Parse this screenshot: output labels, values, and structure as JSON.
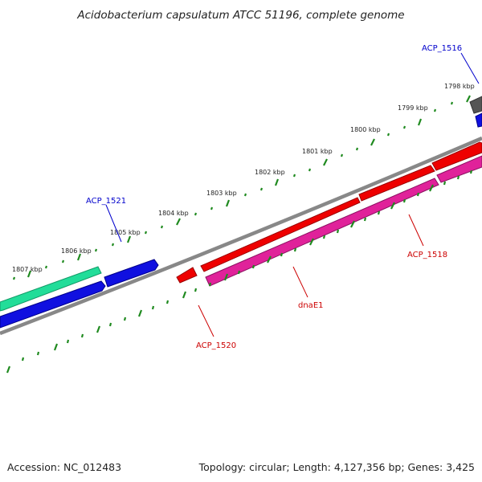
{
  "title": "Acidobacterium capsulatum ATCC 51196, complete genome",
  "footer": {
    "accession": "Accession: NC_012483",
    "summary": "Topology: circular; Length: 4,127,356 bp; Genes: 3,425"
  },
  "colors": {
    "backbone": "#888888",
    "tick": "#1f8a1f",
    "label_forward": "#0000cc",
    "label_reverse": "#cc0000",
    "gene_red": "#ee0000",
    "gene_magenta": "#e0229a",
    "gene_blue": "#1010e0",
    "gene_teal": "#22dd99",
    "gene_gray": "#555555"
  },
  "scale_labels": [
    "1798 kbp",
    "1799 kbp",
    "1800 kbp",
    "1801 kbp",
    "1802 kbp",
    "1803 kbp",
    "1804 kbp",
    "1805 kbp",
    "1806 kbp",
    "1807 kbp"
  ],
  "gene_labels": {
    "acp_1516": "ACP_1516",
    "acp_1521": "ACP_1521",
    "acp_1518": "ACP_1518",
    "dnae1": "dnaE1",
    "acp_1520": "ACP_1520"
  }
}
